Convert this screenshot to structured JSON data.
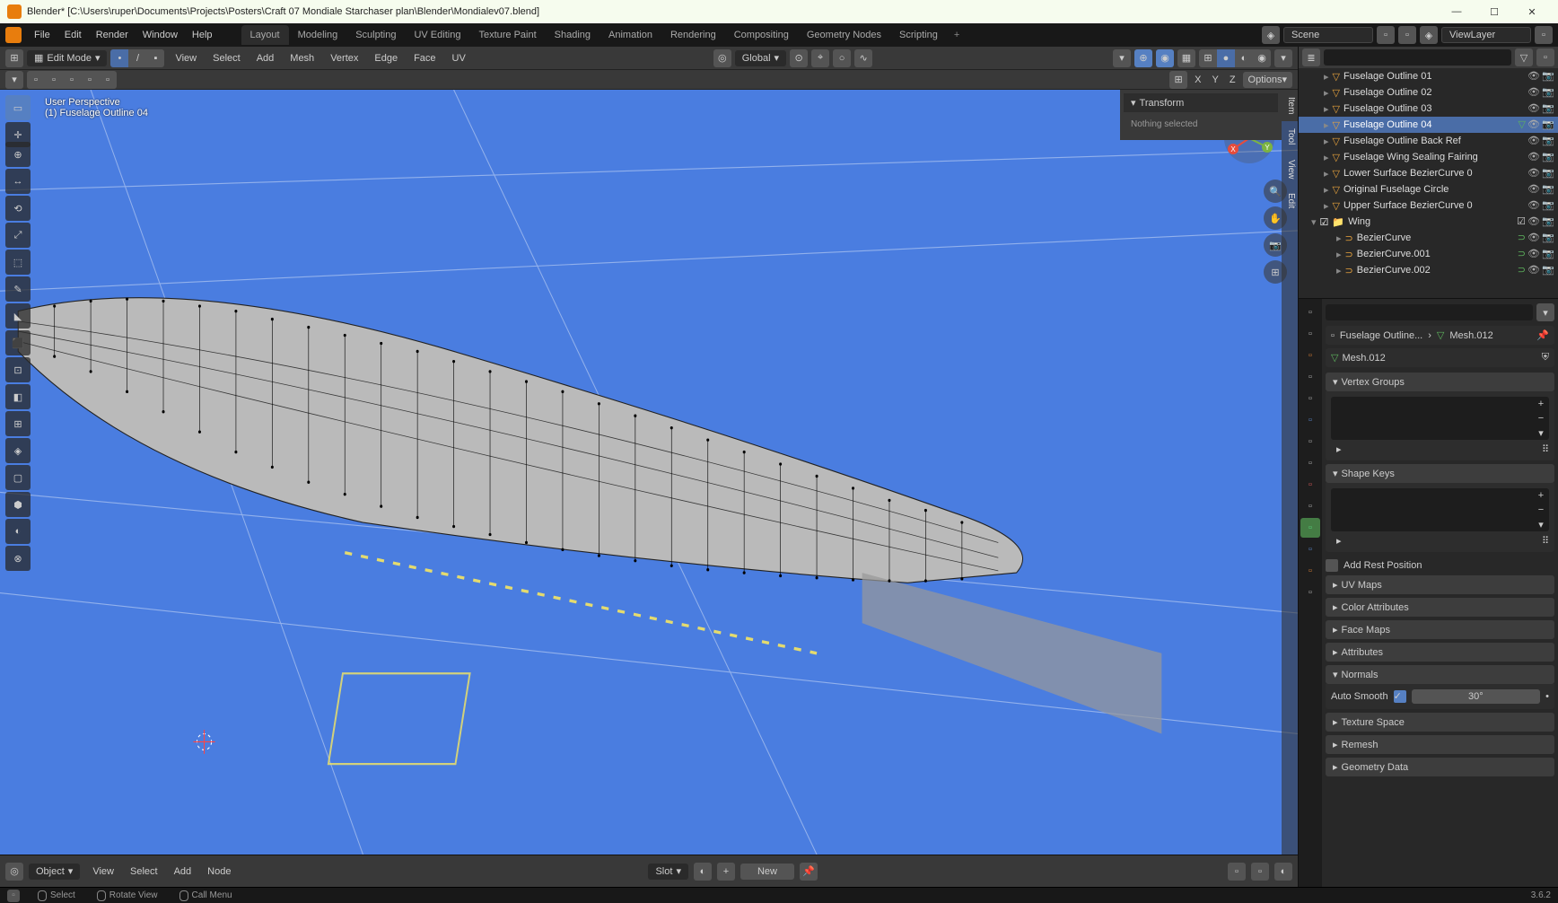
{
  "window": {
    "title": "Blender* [C:\\Users\\ruper\\Documents\\Projects\\Posters\\Craft 07 Mondiale Starchaser plan\\Blender\\Mondialev07.blend]"
  },
  "menu": {
    "items": [
      "File",
      "Edit",
      "Render",
      "Window",
      "Help"
    ]
  },
  "workspaces": {
    "items": [
      "Layout",
      "Modeling",
      "Sculpting",
      "UV Editing",
      "Texture Paint",
      "Shading",
      "Animation",
      "Rendering",
      "Compositing",
      "Geometry Nodes",
      "Scripting"
    ],
    "active": "Layout"
  },
  "scene": {
    "label": "Scene",
    "viewlayer": "ViewLayer"
  },
  "viewport_header": {
    "mode": "Edit Mode",
    "menus": [
      "View",
      "Select",
      "Add",
      "Mesh",
      "Vertex",
      "Edge",
      "Face",
      "UV"
    ],
    "orientation": "Global",
    "options_label": "Options",
    "axes": [
      "X",
      "Y",
      "Z"
    ]
  },
  "viewport": {
    "perspective": "User Perspective",
    "object_info": "(1) Fuselage Outline 04",
    "bg_color": "#3a69c7",
    "mesh_color": "#b8b8b8",
    "n_panel": {
      "title": "Transform",
      "body": "Nothing selected"
    },
    "side_tabs": [
      "Item",
      "Tool",
      "View",
      "Edit"
    ],
    "tool_count": 16
  },
  "lower": {
    "object_mode": "Object",
    "menus": [
      "View",
      "Select",
      "Add",
      "Node"
    ],
    "slot": "Slot",
    "new": "New"
  },
  "statusbar": {
    "items": [
      "Select",
      "Rotate View",
      "Call Menu"
    ],
    "version": "3.6.2"
  },
  "outliner": {
    "items": [
      {
        "label": "Fuselage Outline 01",
        "type": "mesh"
      },
      {
        "label": "Fuselage Outline 02",
        "type": "mesh"
      },
      {
        "label": "Fuselage Outline 03",
        "type": "mesh"
      },
      {
        "label": "Fuselage Outline 04",
        "type": "mesh",
        "active": true,
        "edit": true
      },
      {
        "label": "Fuselage Outline Back Ref",
        "type": "mesh"
      },
      {
        "label": "Fuselage Wing Sealing Fairing",
        "type": "curve"
      },
      {
        "label": "Lower Surface BezierCurve 0",
        "type": "curve"
      },
      {
        "label": "Original Fuselage Circle",
        "type": "mesh"
      },
      {
        "label": "Upper Surface BezierCurve 0",
        "type": "curve"
      }
    ],
    "wing": {
      "label": "Wing",
      "children": [
        {
          "label": "BezierCurve"
        },
        {
          "label": "BezierCurve.001"
        },
        {
          "label": "BezierCurve.002"
        }
      ]
    }
  },
  "properties": {
    "breadcrumb_obj": "Fuselage Outline...",
    "breadcrumb_mesh": "Mesh.012",
    "mesh_name": "Mesh.012",
    "panels": {
      "vertex_groups": "Vertex Groups",
      "shape_keys": "Shape Keys",
      "add_rest": "Add Rest Position",
      "uv_maps": "UV Maps",
      "color_attrs": "Color Attributes",
      "face_maps": "Face Maps",
      "attributes": "Attributes",
      "normals": "Normals",
      "auto_smooth": "Auto Smooth",
      "angle": "30°",
      "texture_space": "Texture Space",
      "remesh": "Remesh",
      "geometry_data": "Geometry Data"
    }
  }
}
